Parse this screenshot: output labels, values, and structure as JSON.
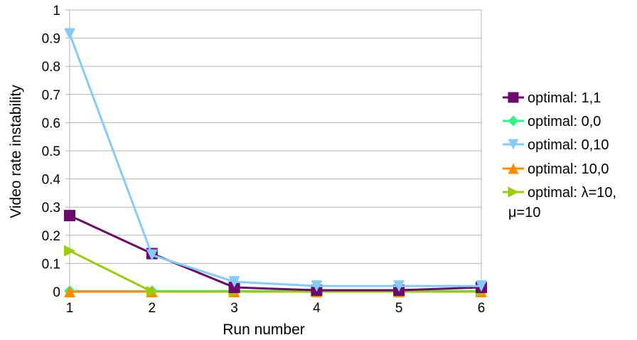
{
  "chart_data": {
    "type": "line",
    "title": "",
    "xlabel": "Run number",
    "ylabel": "Video rate instability",
    "x": [
      1,
      2,
      3,
      4,
      5,
      6
    ],
    "xticks": [
      "1",
      "2",
      "3",
      "4",
      "5",
      "6"
    ],
    "ylim": [
      0,
      1
    ],
    "yticks": [
      "0",
      "0.1",
      "0.2",
      "0.3",
      "0.4",
      "0.5",
      "0.6",
      "0.7",
      "0.8",
      "0.9",
      "1"
    ],
    "grid": true,
    "legend_position": "right",
    "series": [
      {
        "name": "optimal: 1,1",
        "values": [
          0.27,
          0.135,
          0.015,
          0.005,
          0.005,
          0.015
        ],
        "color": "#6a0b6b",
        "marker": "square"
      },
      {
        "name": "optimal: 0,0",
        "values": [
          0.002,
          0.002,
          0.002,
          0.002,
          0.002,
          0.002
        ],
        "color": "#33f28a",
        "marker": "diamond"
      },
      {
        "name": "optimal: 0,10",
        "values": [
          0.915,
          0.13,
          0.035,
          0.02,
          0.02,
          0.02
        ],
        "color": "#83cbf8",
        "marker": "triangle-down"
      },
      {
        "name": "optimal: 10,0",
        "values": [
          0,
          0,
          0,
          0,
          0,
          0
        ],
        "color": "#ff8c00",
        "marker": "triangle-up"
      },
      {
        "name": "optimal: λ=10, μ=10",
        "values": [
          0.145,
          0,
          0,
          0,
          0,
          0
        ],
        "color": "#9ccb0c",
        "marker": "triangle-right"
      }
    ]
  }
}
